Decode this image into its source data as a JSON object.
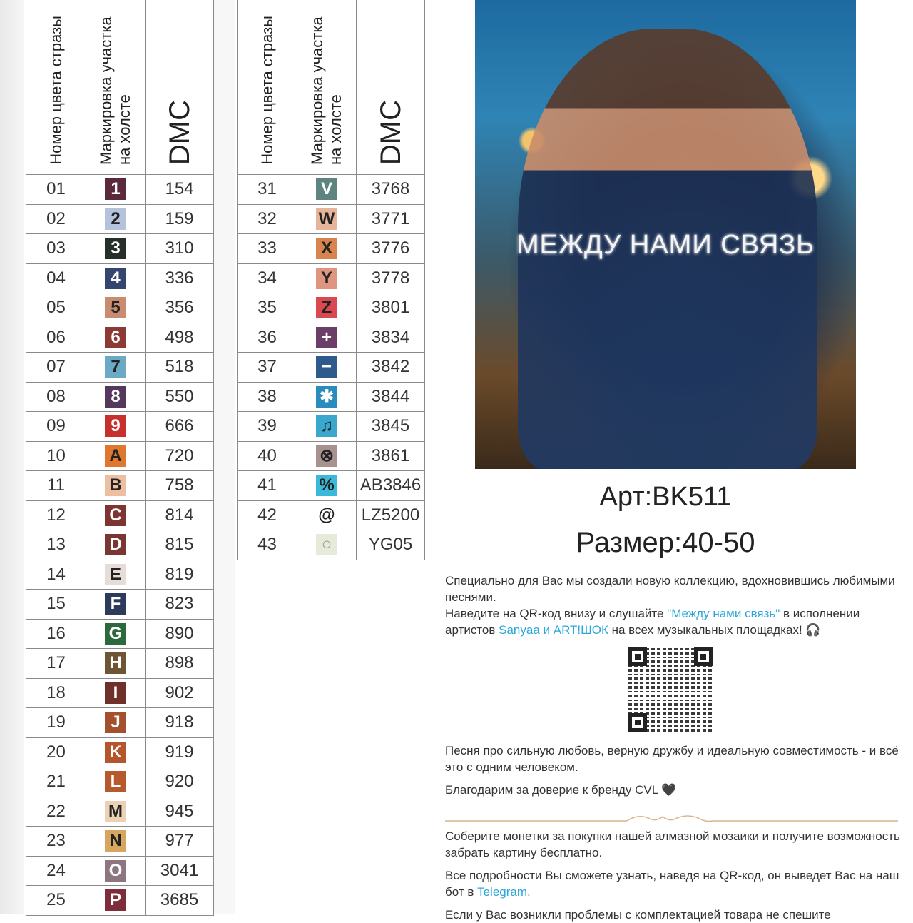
{
  "table_headers": {
    "color_number": "Номер цвета стразы",
    "marking": "Маркировка участка на холсте",
    "dmc": "DMC"
  },
  "table_left": [
    {
      "n": "01",
      "s": "1",
      "c": "#5a2a3c",
      "t": "#fff",
      "dmc": "154"
    },
    {
      "n": "02",
      "s": "2",
      "c": "#b5c2dc",
      "t": "#222",
      "dmc": "159"
    },
    {
      "n": "03",
      "s": "3",
      "c": "#26302a",
      "t": "#fff",
      "dmc": "310"
    },
    {
      "n": "04",
      "s": "4",
      "c": "#34466e",
      "t": "#fff",
      "dmc": "336"
    },
    {
      "n": "05",
      "s": "5",
      "c": "#c98c6e",
      "t": "#222",
      "dmc": "356"
    },
    {
      "n": "06",
      "s": "6",
      "c": "#8e3a34",
      "t": "#fff",
      "dmc": "498"
    },
    {
      "n": "07",
      "s": "7",
      "c": "#6aaac4",
      "t": "#222",
      "dmc": "518"
    },
    {
      "n": "08",
      "s": "8",
      "c": "#55385e",
      "t": "#fff",
      "dmc": "550"
    },
    {
      "n": "09",
      "s": "9",
      "c": "#c8302e",
      "t": "#fff",
      "dmc": "666"
    },
    {
      "n": "10",
      "s": "A",
      "c": "#e0772f",
      "t": "#222",
      "dmc": "720"
    },
    {
      "n": "11",
      "s": "B",
      "c": "#ebbfa0",
      "t": "#222",
      "dmc": "758"
    },
    {
      "n": "12",
      "s": "C",
      "c": "#7c3530",
      "t": "#fff",
      "dmc": "814"
    },
    {
      "n": "13",
      "s": "D",
      "c": "#7a3632",
      "t": "#fff",
      "dmc": "815"
    },
    {
      "n": "14",
      "s": "E",
      "c": "#e6dcd8",
      "t": "#222",
      "dmc": "819"
    },
    {
      "n": "15",
      "s": "F",
      "c": "#2c3a5c",
      "t": "#fff",
      "dmc": "823"
    },
    {
      "n": "16",
      "s": "G",
      "c": "#2c6a3e",
      "t": "#fff",
      "dmc": "890"
    },
    {
      "n": "17",
      "s": "H",
      "c": "#6e5634",
      "t": "#fff",
      "dmc": "898"
    },
    {
      "n": "18",
      "s": "I",
      "c": "#6e3028",
      "t": "#fff",
      "dmc": "902"
    },
    {
      "n": "19",
      "s": "J",
      "c": "#a2502e",
      "t": "#fff",
      "dmc": "918"
    },
    {
      "n": "20",
      "s": "K",
      "c": "#b4552c",
      "t": "#fff",
      "dmc": "919"
    },
    {
      "n": "21",
      "s": "L",
      "c": "#b65a2e",
      "t": "#fff",
      "dmc": "920"
    },
    {
      "n": "22",
      "s": "M",
      "c": "#ecd1b4",
      "t": "#222",
      "dmc": "945"
    },
    {
      "n": "23",
      "s": "N",
      "c": "#d6a55e",
      "t": "#222",
      "dmc": "977"
    },
    {
      "n": "24",
      "s": "O",
      "c": "#8e7680",
      "t": "#fff",
      "dmc": "3041"
    },
    {
      "n": "25",
      "s": "P",
      "c": "#7e2e3a",
      "t": "#fff",
      "dmc": "3685"
    }
  ],
  "table_right": [
    {
      "n": "31",
      "s": "V",
      "c": "#5e8480",
      "t": "#fff",
      "dmc": "3768"
    },
    {
      "n": "32",
      "s": "W",
      "c": "#e6b49a",
      "t": "#222",
      "dmc": "3771"
    },
    {
      "n": "33",
      "s": "X",
      "c": "#d9844e",
      "t": "#222",
      "dmc": "3776"
    },
    {
      "n": "34",
      "s": "Y",
      "c": "#de9680",
      "t": "#222",
      "dmc": "3778"
    },
    {
      "n": "35",
      "s": "Z",
      "c": "#d84a50",
      "t": "#222",
      "dmc": "3801"
    },
    {
      "n": "36",
      "s": "+",
      "c": "#6a3e66",
      "t": "#fff",
      "dmc": "3834"
    },
    {
      "n": "37",
      "s": "−",
      "c": "#2e5a8c",
      "t": "#fff",
      "dmc": "3842"
    },
    {
      "n": "38",
      "s": "✱",
      "c": "#2a8cbc",
      "t": "#fff",
      "dmc": "3844"
    },
    {
      "n": "39",
      "s": "♫",
      "c": "#3aa8cc",
      "t": "#222",
      "dmc": "3845"
    },
    {
      "n": "40",
      "s": "⊗",
      "c": "#a89290",
      "t": "#222",
      "dmc": "3861"
    },
    {
      "n": "41",
      "s": "%",
      "c": "#3cb8d8",
      "t": "#222",
      "dmc": "AB3846"
    },
    {
      "n": "42",
      "s": "@",
      "c": "#ffffff",
      "t": "#222",
      "dmc": "LZ5200"
    },
    {
      "n": "43",
      "s": "○",
      "c": "#e6ead8",
      "t": "#999",
      "dmc": "YG05"
    }
  ],
  "poster": {
    "title": "МЕЖДУ НАМИ СВЯЗЬ"
  },
  "article": "Арт:BK511",
  "size": "Размер:40-50",
  "text": {
    "p1": "Специально для Вас мы создали новую коллекцию, вдохновившись любимыми песнями.",
    "p2_a": "Наведите на QR-код внизу и слушайте ",
    "p2_song": "\"Между нами связь\"",
    "p2_b": " в исполнении артистов ",
    "p2_artists": "Sanyaa и ART!ШОК",
    "p2_c": " на всех музыкальных площадках! 🎧",
    "p3": "Песня про сильную любовь, верную дружбу и идеальную совместимость - и всё это с одним человеком.",
    "p4": "Благодарим за доверие к бренду CVL 🖤",
    "p5": "Соберите монетки за покупки нашей алмазной мозаики и получите возможность забрать картину бесплатно.",
    "p6_a": "Все подробности Вы сможете узнать, наведя на QR-код, он выведет Вас на наш бот в ",
    "p6_link": "Telegram.",
    "p7": "Если у Вас возникли проблемы с комплектацией товара не спешите"
  },
  "colors": {
    "link": "#2aa7d8",
    "divider": "#d9b48a"
  }
}
